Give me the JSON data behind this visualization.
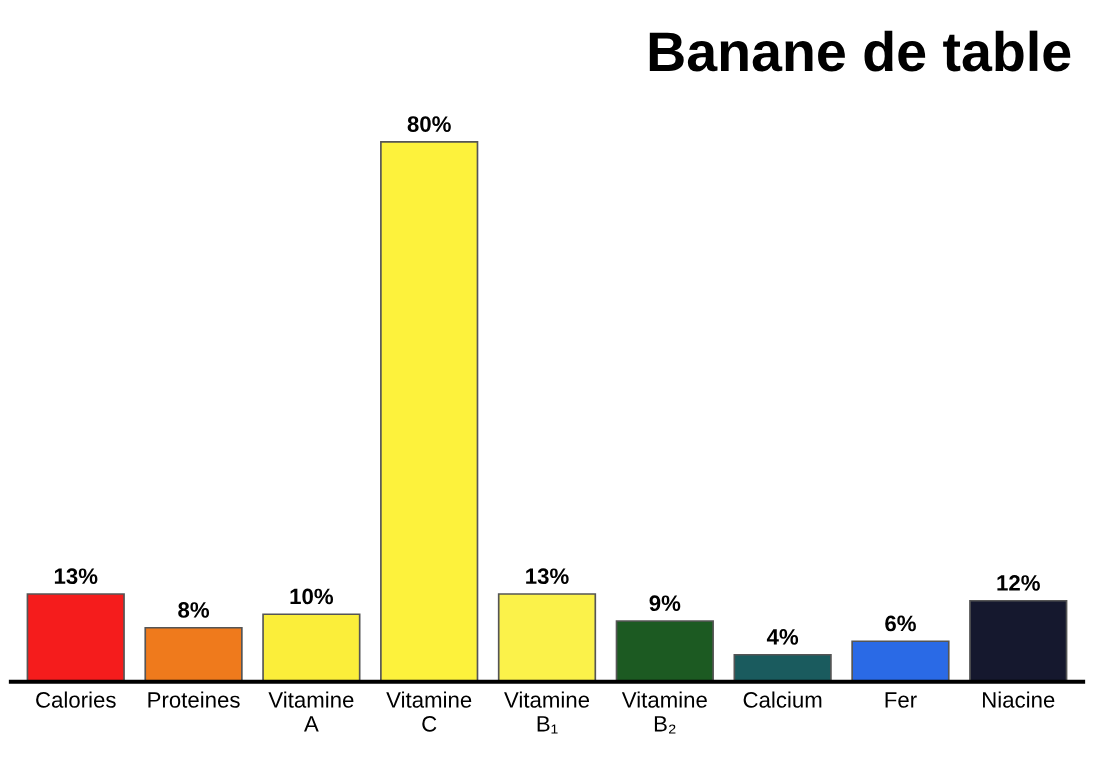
{
  "chart_data": {
    "type": "bar",
    "title": "Banane de table",
    "categories": [
      "Calories",
      "Proteines",
      "Vitamine\nA",
      "Vitamine\nC",
      "Vitamine\nB₁",
      "Vitamine\nB₂",
      "Calcium",
      "Fer",
      "Niacine"
    ],
    "values": [
      13,
      8,
      10,
      80,
      13,
      9,
      4,
      6,
      12
    ],
    "colors": [
      "#f51c1c",
      "#ef7a1c",
      "#fbee3a",
      "#fdf23c",
      "#fbf24a",
      "#1c5a22",
      "#1a5b5e",
      "#2a6ae6",
      "#15182e"
    ],
    "value_labels": [
      "13%",
      "8%",
      "10%",
      "80%",
      "13%",
      "9%",
      "4%",
      "6%",
      "12%"
    ],
    "grid": false
  }
}
